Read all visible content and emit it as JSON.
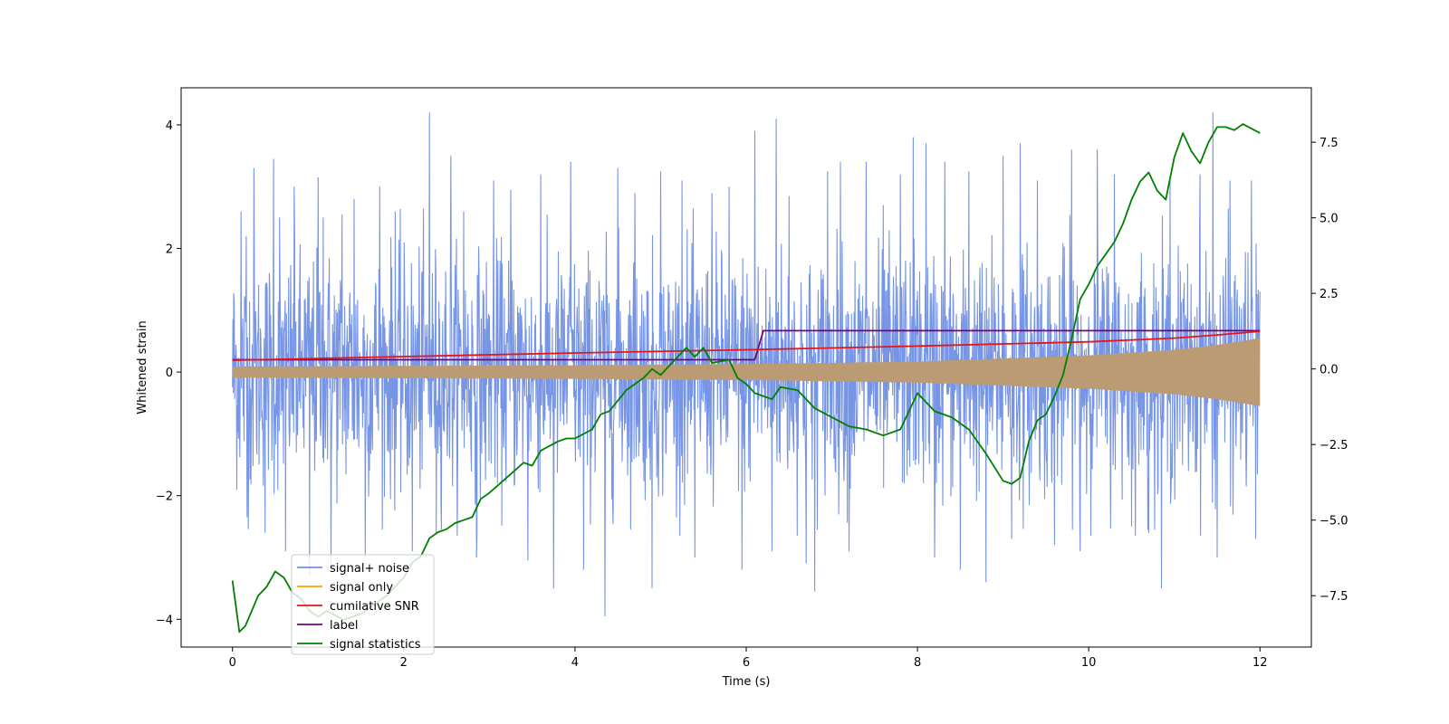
{
  "chart_data": {
    "type": "line",
    "title": "",
    "xlabel": "Time (s)",
    "ylabel": "Whitened strain",
    "y2label": "",
    "xlim": [
      -0.6,
      12.6
    ],
    "ylim": [
      -4.45,
      4.6
    ],
    "y2lim": [
      -9.2,
      9.3
    ],
    "xticks": [
      "0",
      "2",
      "4",
      "6",
      "8",
      "10",
      "12"
    ],
    "yticks": [
      "−4",
      "−2",
      "0",
      "2",
      "4"
    ],
    "y2ticks": [
      "−7.5",
      "−5.0",
      "−2.5",
      "0.0",
      "2.5",
      "5.0",
      "7.5"
    ],
    "xtick_values": [
      0,
      2,
      4,
      6,
      8,
      10,
      12
    ],
    "ytick_values": [
      -4,
      -2,
      0,
      2,
      4
    ],
    "y2tick_values": [
      -7.5,
      -5.0,
      -2.5,
      0.0,
      2.5,
      5.0,
      7.5
    ],
    "grid": false,
    "legend_location": "lower left",
    "series": [
      {
        "name": "signal+ noise",
        "axis": "left",
        "color": "#6f8fe6",
        "kind": "noise-band",
        "t_range": [
          0,
          12
        ],
        "typical_amplitude": 1.0,
        "peaks": [
          [
            0.02,
            1.15
          ],
          [
            0.1,
            2.6
          ],
          [
            0.16,
            2.2
          ],
          [
            0.17,
            -2.35
          ],
          [
            0.25,
            3.3
          ],
          [
            0.38,
            -2.6
          ],
          [
            0.48,
            3.45
          ],
          [
            0.55,
            2.5
          ],
          [
            0.62,
            -2.9
          ],
          [
            0.72,
            3.0
          ],
          [
            0.9,
            -3.3
          ],
          [
            1.0,
            3.15
          ],
          [
            1.06,
            2.5
          ],
          [
            1.15,
            -3.2
          ],
          [
            1.28,
            2.55
          ],
          [
            1.42,
            2.8
          ],
          [
            1.55,
            -3.0
          ],
          [
            1.72,
            3.0
          ],
          [
            1.9,
            2.6
          ],
          [
            2.1,
            -2.9
          ],
          [
            2.3,
            4.2
          ],
          [
            2.38,
            -2.6
          ],
          [
            2.55,
            3.5
          ],
          [
            2.7,
            2.6
          ],
          [
            2.85,
            -3.0
          ],
          [
            3.05,
            3.1
          ],
          [
            3.25,
            2.95
          ],
          [
            3.45,
            -3.05
          ],
          [
            3.6,
            3.2
          ],
          [
            3.75,
            -3.5
          ],
          [
            3.95,
            3.4
          ],
          [
            4.1,
            -3.2
          ],
          [
            4.35,
            -3.95
          ],
          [
            4.5,
            3.3
          ],
          [
            4.7,
            2.9
          ],
          [
            4.9,
            -3.5
          ],
          [
            5.0,
            3.25
          ],
          [
            5.25,
            3.1
          ],
          [
            5.4,
            -3.0
          ],
          [
            5.6,
            2.9
          ],
          [
            5.8,
            3.0
          ],
          [
            5.95,
            -3.2
          ],
          [
            6.1,
            3.9
          ],
          [
            6.3,
            -2.9
          ],
          [
            6.35,
            4.1
          ],
          [
            6.5,
            2.85
          ],
          [
            6.7,
            -3.1
          ],
          [
            6.8,
            -3.55
          ],
          [
            6.95,
            3.25
          ],
          [
            7.1,
            3.4
          ],
          [
            7.2,
            -2.9
          ],
          [
            7.4,
            3.4
          ],
          [
            7.6,
            2.7
          ],
          [
            7.8,
            3.2
          ],
          [
            7.95,
            3.8
          ],
          [
            8.1,
            3.7
          ],
          [
            8.2,
            -3.0
          ],
          [
            8.32,
            3.4
          ],
          [
            8.5,
            -3.2
          ],
          [
            8.6,
            3.25
          ],
          [
            8.8,
            -3.4
          ],
          [
            9.0,
            3.5
          ],
          [
            9.1,
            -2.7
          ],
          [
            9.2,
            3.7
          ],
          [
            9.4,
            3.1
          ],
          [
            9.6,
            -2.8
          ],
          [
            9.8,
            3.6
          ],
          [
            9.9,
            -2.9
          ],
          [
            10.1,
            3.6
          ],
          [
            10.3,
            3.2
          ],
          [
            10.5,
            -2.5
          ],
          [
            10.7,
            -2.6
          ],
          [
            10.85,
            -3.5
          ],
          [
            10.95,
            3.1
          ],
          [
            11.3,
            3.2
          ],
          [
            11.45,
            4.2
          ],
          [
            11.5,
            -3.0
          ],
          [
            11.65,
            3.1
          ],
          [
            11.9,
            3.1
          ],
          [
            11.95,
            -2.7
          ],
          [
            12.0,
            1.3
          ]
        ]
      },
      {
        "name": "signal only",
        "axis": "left",
        "color": "#ffa500",
        "kind": "chirp-envelope",
        "t": [
          0,
          2,
          4,
          6,
          8,
          10,
          11,
          11.5,
          12
        ],
        "amplitude": [
          0.09,
          0.1,
          0.11,
          0.13,
          0.17,
          0.27,
          0.36,
          0.44,
          0.55
        ]
      },
      {
        "name": "cumilative SNR",
        "axis": "left",
        "color": "#e8141c",
        "t": [
          0,
          2,
          4,
          6,
          8,
          10,
          11,
          11.5,
          12
        ],
        "values": [
          0.19,
          0.25,
          0.31,
          0.36,
          0.42,
          0.49,
          0.55,
          0.6,
          0.66
        ]
      },
      {
        "name": "label",
        "axis": "left",
        "color": "#7a007a",
        "t": [
          0,
          6.1,
          6.2,
          12
        ],
        "values": [
          0.2,
          0.2,
          0.67,
          0.67
        ]
      },
      {
        "name": "signal statistics",
        "axis": "right",
        "color": "#008000",
        "t": [
          0,
          0.08,
          0.15,
          0.3,
          0.4,
          0.5,
          0.6,
          0.7,
          0.8,
          0.9,
          1.0,
          1.1,
          1.3,
          1.5,
          1.8,
          2.0,
          2.1,
          2.2,
          2.3,
          2.4,
          2.5,
          2.6,
          2.7,
          2.8,
          2.9,
          3.0,
          3.2,
          3.4,
          3.5,
          3.6,
          3.8,
          3.9,
          4.0,
          4.2,
          4.3,
          4.4,
          4.6,
          4.7,
          4.8,
          4.9,
          5.0,
          5.1,
          5.2,
          5.3,
          5.4,
          5.5,
          5.6,
          5.8,
          5.9,
          6.0,
          6.1,
          6.3,
          6.4,
          6.6,
          6.8,
          7.0,
          7.2,
          7.4,
          7.6,
          7.8,
          8.0,
          8.2,
          8.4,
          8.6,
          8.8,
          9.0,
          9.1,
          9.2,
          9.3,
          9.4,
          9.5,
          9.6,
          9.7,
          9.8,
          9.9,
          10.0,
          10.1,
          10.2,
          10.3,
          10.4,
          10.5,
          10.6,
          10.7,
          10.8,
          10.9,
          11.0,
          11.1,
          11.2,
          11.3,
          11.4,
          11.5,
          11.6,
          11.7,
          11.8,
          12.0
        ],
        "values": [
          -7.0,
          -8.7,
          -8.5,
          -7.5,
          -7.2,
          -6.7,
          -6.9,
          -7.4,
          -7.6,
          -8.0,
          -8.2,
          -8.0,
          -8.3,
          -8.1,
          -7.5,
          -6.9,
          -6.4,
          -6.2,
          -5.6,
          -5.4,
          -5.3,
          -5.1,
          -5.0,
          -4.9,
          -4.3,
          -4.1,
          -3.6,
          -3.1,
          -3.2,
          -2.7,
          -2.4,
          -2.3,
          -2.3,
          -2.0,
          -1.5,
          -1.4,
          -0.7,
          -0.5,
          -0.3,
          0.0,
          -0.2,
          0.1,
          0.4,
          0.7,
          0.4,
          0.7,
          0.2,
          0.3,
          -0.3,
          -0.5,
          -0.8,
          -1.0,
          -0.6,
          -0.7,
          -1.3,
          -1.6,
          -1.9,
          -2.0,
          -2.2,
          -2.0,
          -0.8,
          -1.4,
          -1.6,
          -2.0,
          -2.8,
          -3.7,
          -3.8,
          -3.6,
          -2.4,
          -1.7,
          -1.5,
          -0.9,
          -0.2,
          1.0,
          2.3,
          2.8,
          3.4,
          3.8,
          4.2,
          4.8,
          5.6,
          6.2,
          6.5,
          5.9,
          5.6,
          7.0,
          7.8,
          7.2,
          6.8,
          7.5,
          8.0,
          8.0,
          7.9,
          8.1,
          7.8
        ]
      }
    ]
  }
}
